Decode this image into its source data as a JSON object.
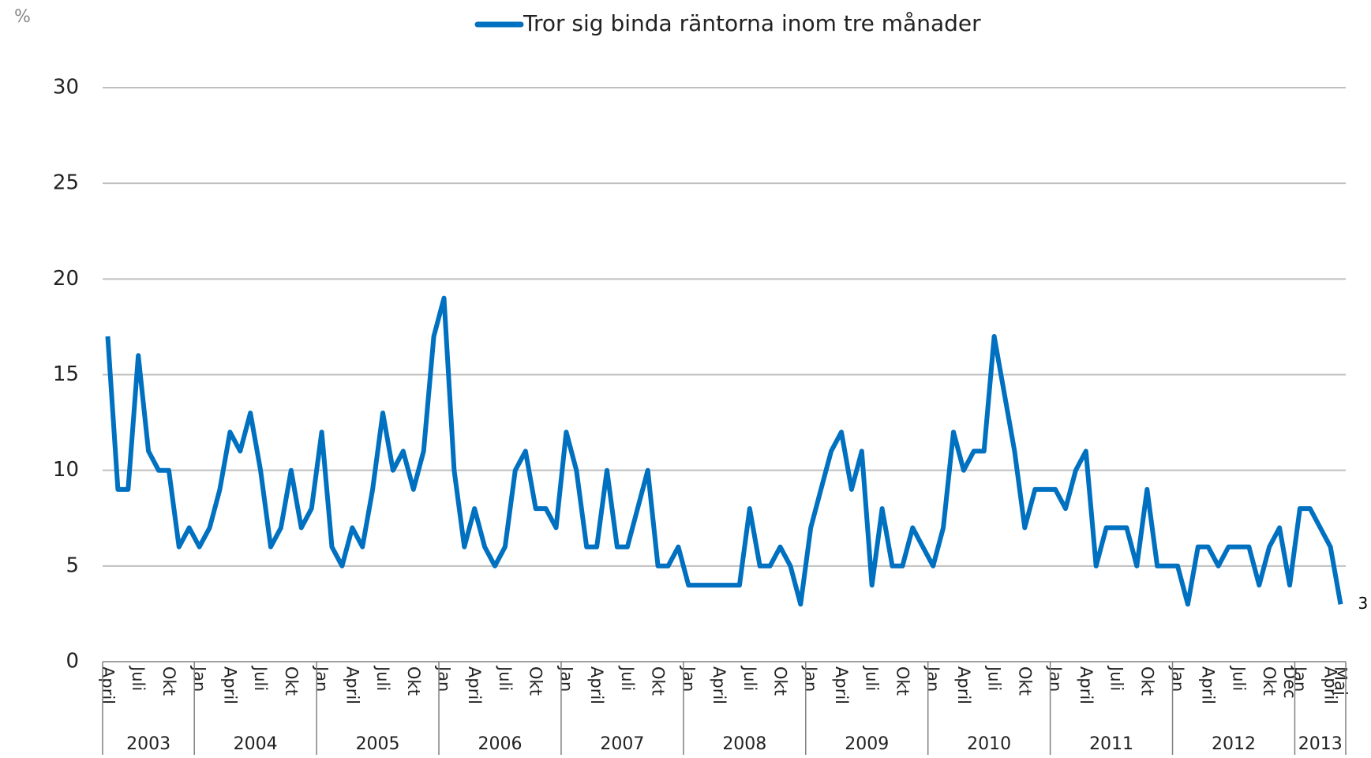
{
  "chart_data": {
    "type": "line",
    "unit_label": "%",
    "categories": [
      "April",
      null,
      null,
      "Juli",
      null,
      null,
      "Okt",
      null,
      null,
      "Jan",
      null,
      null,
      "April",
      null,
      null,
      "Juli",
      null,
      null,
      "Okt",
      null,
      null,
      "Jan",
      null,
      null,
      "April",
      null,
      null,
      "Juli",
      null,
      null,
      "Okt",
      null,
      null,
      "Jan",
      null,
      null,
      "April",
      null,
      null,
      "Juli",
      null,
      null,
      "Okt",
      null,
      null,
      "Jan",
      null,
      null,
      "April",
      null,
      null,
      "Juli",
      null,
      null,
      "Okt",
      null,
      null,
      "Jan",
      null,
      null,
      "April",
      null,
      null,
      "Juli",
      null,
      null,
      "Okt",
      null,
      null,
      "Jan",
      null,
      null,
      "April",
      null,
      null,
      "Juli",
      null,
      null,
      "Okt",
      null,
      null,
      "Jan",
      null,
      null,
      "April",
      null,
      null,
      "Juli",
      null,
      null,
      "Okt",
      null,
      null,
      "Jan",
      null,
      null,
      "April",
      null,
      null,
      "Juli",
      null,
      null,
      "Okt",
      null,
      null,
      "Jan",
      null,
      null,
      "April",
      null,
      null,
      "Juli",
      null,
      null,
      "Okt",
      null,
      "Dec",
      "Jan",
      null,
      null,
      "April",
      "Maj"
    ],
    "year_groups": [
      {
        "label": "2003",
        "start": 0,
        "end": 8
      },
      {
        "label": "2004",
        "start": 9,
        "end": 20
      },
      {
        "label": "2005",
        "start": 21,
        "end": 32
      },
      {
        "label": "2006",
        "start": 33,
        "end": 44
      },
      {
        "label": "2007",
        "start": 45,
        "end": 56
      },
      {
        "label": "2008",
        "start": 57,
        "end": 68
      },
      {
        "label": "2009",
        "start": 69,
        "end": 80
      },
      {
        "label": "2010",
        "start": 81,
        "end": 92
      },
      {
        "label": "2011",
        "start": 93,
        "end": 104
      },
      {
        "label": "2012",
        "start": 105,
        "end": 116
      },
      {
        "label": "2013",
        "start": 117,
        "end": 121
      }
    ],
    "series": [
      {
        "name": "Tror sig binda räntorna inom tre månader",
        "color": "#0070c0",
        "values": [
          17,
          9,
          9,
          16,
          11,
          10,
          10,
          6,
          7,
          6,
          7,
          9,
          12,
          11,
          13,
          10,
          6,
          7,
          10,
          7,
          8,
          12,
          6,
          5,
          7,
          6,
          9,
          13,
          10,
          11,
          9,
          11,
          17,
          19,
          10,
          6,
          8,
          6,
          5,
          6,
          10,
          11,
          8,
          8,
          7,
          12,
          10,
          6,
          6,
          10,
          6,
          6,
          8,
          10,
          5,
          5,
          6,
          4,
          4,
          4,
          4,
          4,
          4,
          8,
          5,
          5,
          6,
          5,
          3,
          7,
          9,
          11,
          12,
          9,
          11,
          4,
          8,
          5,
          5,
          7,
          6,
          5,
          7,
          12,
          10,
          11,
          11,
          17,
          14,
          11,
          7,
          9,
          9,
          9,
          8,
          10,
          11,
          5,
          7,
          7,
          7,
          5,
          9,
          5,
          5,
          5,
          3,
          6,
          6,
          5,
          6,
          6,
          6,
          4,
          6,
          7,
          4,
          8,
          8,
          7,
          6,
          3
        ]
      }
    ],
    "ylim": [
      0,
      30
    ],
    "yticks": [
      0,
      5,
      10,
      15,
      20,
      25,
      30
    ],
    "grid": true,
    "legend": "top"
  }
}
